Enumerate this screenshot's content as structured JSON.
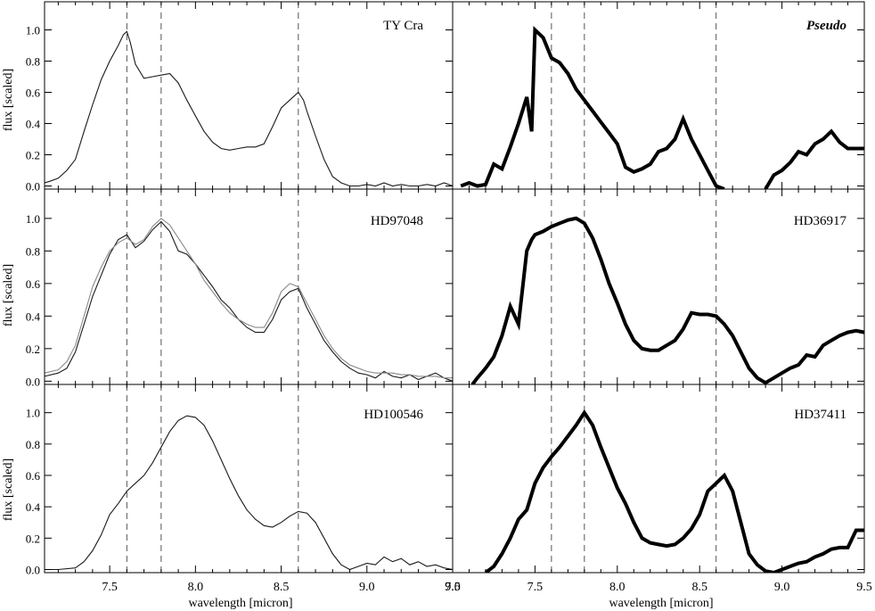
{
  "figure": {
    "ylabel": "flux [scaled]",
    "xlabel": "wavelength [micron]",
    "colors": {
      "axis": "#000000",
      "dash": "#555555",
      "spectrum": "#1a1a1a",
      "overlay": "#8a8a8a",
      "model": "#000000"
    }
  },
  "chart_data": [
    {
      "type": "line",
      "title": "TY Cra",
      "xlabel": "",
      "ylabel": "flux [scaled]",
      "xlim": [
        7.12,
        9.5
      ],
      "ylim": [
        -0.02,
        1.18
      ],
      "xticks": [],
      "yticks": [
        0.0,
        0.2,
        0.4,
        0.6,
        0.8,
        1.0
      ],
      "ytick_labels": [
        "0.0",
        "0.2",
        "0.4",
        "0.6",
        "0.8",
        "1.0"
      ],
      "vlines": [
        7.6,
        7.8,
        8.6
      ],
      "series": [
        {
          "style": "thin",
          "x": [
            7.12,
            7.15,
            7.2,
            7.25,
            7.3,
            7.35,
            7.4,
            7.45,
            7.5,
            7.55,
            7.58,
            7.6,
            7.62,
            7.65,
            7.7,
            7.75,
            7.8,
            7.85,
            7.9,
            7.95,
            8.0,
            8.05,
            8.1,
            8.15,
            8.2,
            8.25,
            8.3,
            8.35,
            8.4,
            8.45,
            8.5,
            8.55,
            8.6,
            8.63,
            8.65,
            8.7,
            8.75,
            8.8,
            8.85,
            8.9,
            8.95,
            9.0,
            9.05,
            9.1,
            9.15,
            9.2,
            9.25,
            9.3,
            9.35,
            9.4,
            9.45,
            9.5
          ],
          "y": [
            0.02,
            0.03,
            0.05,
            0.1,
            0.17,
            0.35,
            0.52,
            0.68,
            0.8,
            0.9,
            0.97,
            0.99,
            0.92,
            0.78,
            0.69,
            0.7,
            0.71,
            0.72,
            0.66,
            0.55,
            0.45,
            0.35,
            0.28,
            0.24,
            0.23,
            0.24,
            0.25,
            0.25,
            0.27,
            0.38,
            0.5,
            0.55,
            0.6,
            0.55,
            0.48,
            0.32,
            0.17,
            0.06,
            0.02,
            0.0,
            0.0,
            0.01,
            0.0,
            0.02,
            0.0,
            0.01,
            0.0,
            0.0,
            0.01,
            0.0,
            0.02,
            0.0
          ]
        }
      ]
    },
    {
      "type": "line",
      "title": "Pseudo",
      "xlabel": "",
      "ylabel": "",
      "xlim": [
        7.0,
        9.5
      ],
      "ylim": [
        -0.02,
        1.18
      ],
      "xticks": [],
      "yticks": [],
      "vlines": [
        7.6,
        7.8,
        8.6
      ],
      "series": [
        {
          "style": "thick",
          "x": [
            7.05,
            7.1,
            7.15,
            7.2,
            7.25,
            7.3,
            7.35,
            7.4,
            7.45,
            7.48,
            7.5,
            7.55,
            7.6,
            7.65,
            7.7,
            7.75,
            7.8,
            7.85,
            7.9,
            7.95,
            8.0,
            8.05,
            8.1,
            8.15,
            8.2,
            8.25,
            8.3,
            8.35,
            8.4,
            8.45,
            8.5,
            8.55,
            8.6,
            8.65
          ],
          "y": [
            0.0,
            0.02,
            0.0,
            0.01,
            0.14,
            0.11,
            0.25,
            0.4,
            0.57,
            0.35,
            1.0,
            0.95,
            0.82,
            0.79,
            0.72,
            0.62,
            0.55,
            0.48,
            0.41,
            0.34,
            0.27,
            0.12,
            0.09,
            0.11,
            0.14,
            0.22,
            0.24,
            0.3,
            0.43,
            0.3,
            0.2,
            0.1,
            0.0,
            -0.02
          ]
        },
        {
          "style": "thick",
          "x": [
            8.9,
            8.95,
            9.0,
            9.05,
            9.1,
            9.15,
            9.2,
            9.25,
            9.3,
            9.35,
            9.4,
            9.45,
            9.5
          ],
          "y": [
            -0.02,
            0.07,
            0.1,
            0.15,
            0.22,
            0.2,
            0.27,
            0.3,
            0.35,
            0.28,
            0.24,
            0.24,
            0.24
          ]
        }
      ]
    },
    {
      "type": "line",
      "title": "HD97048",
      "xlabel": "",
      "ylabel": "flux [scaled]",
      "xlim": [
        7.12,
        9.5
      ],
      "ylim": [
        -0.02,
        1.18
      ],
      "xticks": [],
      "yticks": [
        0.0,
        0.2,
        0.4,
        0.6,
        0.8,
        1.0
      ],
      "ytick_labels": [
        "0.0",
        "0.2",
        "0.4",
        "0.6",
        "0.8",
        "1.0"
      ],
      "vlines": [
        7.6,
        7.8,
        8.6
      ],
      "series": [
        {
          "style": "thin",
          "x": [
            7.12,
            7.2,
            7.25,
            7.3,
            7.35,
            7.4,
            7.45,
            7.5,
            7.55,
            7.6,
            7.65,
            7.7,
            7.75,
            7.8,
            7.85,
            7.9,
            7.95,
            8.0,
            8.05,
            8.1,
            8.15,
            8.2,
            8.25,
            8.3,
            8.35,
            8.4,
            8.45,
            8.5,
            8.55,
            8.6,
            8.65,
            8.7,
            8.75,
            8.8,
            8.85,
            8.9,
            8.95,
            9.0,
            9.05,
            9.1,
            9.15,
            9.2,
            9.25,
            9.3,
            9.35,
            9.4,
            9.45,
            9.5
          ],
          "y": [
            0.03,
            0.05,
            0.08,
            0.18,
            0.35,
            0.52,
            0.65,
            0.78,
            0.87,
            0.9,
            0.82,
            0.86,
            0.93,
            0.98,
            0.92,
            0.8,
            0.78,
            0.72,
            0.65,
            0.58,
            0.5,
            0.45,
            0.38,
            0.33,
            0.3,
            0.3,
            0.38,
            0.5,
            0.55,
            0.57,
            0.45,
            0.35,
            0.25,
            0.18,
            0.12,
            0.08,
            0.05,
            0.04,
            0.02,
            0.06,
            0.03,
            0.02,
            0.04,
            0.01,
            0.03,
            0.05,
            0.02,
            0.0
          ]
        },
        {
          "style": "overlay",
          "x": [
            7.12,
            7.2,
            7.25,
            7.3,
            7.35,
            7.4,
            7.45,
            7.5,
            7.55,
            7.6,
            7.65,
            7.7,
            7.75,
            7.8,
            7.85,
            7.9,
            7.95,
            8.0,
            8.05,
            8.1,
            8.15,
            8.2,
            8.25,
            8.3,
            8.35,
            8.4,
            8.45,
            8.5,
            8.55,
            8.6,
            8.65,
            8.7,
            8.75,
            8.8,
            8.85,
            8.9,
            8.95,
            9.0,
            9.05,
            9.1,
            9.15,
            9.2,
            9.25,
            9.3,
            9.35,
            9.4,
            9.45,
            9.5
          ],
          "y": [
            0.05,
            0.07,
            0.12,
            0.22,
            0.4,
            0.58,
            0.7,
            0.8,
            0.85,
            0.88,
            0.84,
            0.87,
            0.95,
            1.0,
            0.96,
            0.88,
            0.8,
            0.72,
            0.62,
            0.55,
            0.48,
            0.42,
            0.38,
            0.35,
            0.33,
            0.33,
            0.42,
            0.55,
            0.6,
            0.58,
            0.48,
            0.38,
            0.28,
            0.2,
            0.14,
            0.1,
            0.08,
            0.06,
            0.05,
            0.05,
            0.05,
            0.04,
            0.04,
            0.03,
            0.03,
            0.03,
            0.02,
            0.02
          ]
        }
      ]
    },
    {
      "type": "line",
      "title": "HD36917",
      "xlabel": "",
      "ylabel": "",
      "xlim": [
        7.0,
        9.5
      ],
      "ylim": [
        -0.02,
        1.18
      ],
      "xticks": [],
      "yticks": [],
      "vlines": [
        7.6,
        7.8,
        8.6
      ],
      "series": [
        {
          "style": "thick",
          "x": [
            7.12,
            7.15,
            7.2,
            7.25,
            7.3,
            7.35,
            7.4,
            7.45,
            7.48,
            7.5,
            7.55,
            7.6,
            7.65,
            7.7,
            7.75,
            7.8,
            7.85,
            7.9,
            7.95,
            8.0,
            8.05,
            8.1,
            8.15,
            8.2,
            8.25,
            8.3,
            8.35,
            8.4,
            8.45,
            8.5,
            8.55,
            8.6,
            8.65,
            8.7,
            8.75,
            8.8,
            8.85,
            8.9,
            8.95,
            9.0,
            9.05,
            9.1,
            9.15,
            9.2,
            9.25,
            9.3,
            9.35,
            9.4,
            9.45,
            9.5
          ],
          "y": [
            -0.02,
            0.02,
            0.08,
            0.15,
            0.28,
            0.46,
            0.35,
            0.8,
            0.87,
            0.9,
            0.92,
            0.95,
            0.97,
            0.99,
            1.0,
            0.97,
            0.88,
            0.75,
            0.6,
            0.48,
            0.35,
            0.25,
            0.2,
            0.19,
            0.19,
            0.22,
            0.25,
            0.32,
            0.42,
            0.41,
            0.41,
            0.4,
            0.35,
            0.28,
            0.18,
            0.08,
            0.02,
            -0.01,
            0.02,
            0.05,
            0.08,
            0.1,
            0.16,
            0.15,
            0.22,
            0.25,
            0.28,
            0.3,
            0.31,
            0.3
          ]
        }
      ]
    },
    {
      "type": "line",
      "title": "HD100546",
      "xlabel": "wavelength [micron]",
      "ylabel": "flux [scaled]",
      "xlim": [
        7.12,
        9.5
      ],
      "ylim": [
        -0.02,
        1.18
      ],
      "xticks": [
        7.5,
        8.0,
        8.5,
        9.0,
        9.5
      ],
      "xtick_labels": [
        "7.5",
        "8.0",
        "8.5",
        "9.0",
        "9.5"
      ],
      "yticks": [
        0.0,
        0.2,
        0.4,
        0.6,
        0.8,
        1.0
      ],
      "ytick_labels": [
        "0.0",
        "0.2",
        "0.4",
        "0.6",
        "0.8",
        "1.0"
      ],
      "vlines": [
        7.6,
        7.8,
        8.6
      ],
      "series": [
        {
          "style": "thin",
          "x": [
            7.12,
            7.2,
            7.3,
            7.35,
            7.4,
            7.45,
            7.5,
            7.55,
            7.6,
            7.65,
            7.7,
            7.75,
            7.8,
            7.85,
            7.9,
            7.95,
            8.0,
            8.05,
            8.1,
            8.15,
            8.2,
            8.25,
            8.3,
            8.35,
            8.4,
            8.45,
            8.5,
            8.55,
            8.6,
            8.65,
            8.7,
            8.75,
            8.8,
            8.85,
            8.9,
            8.95,
            9.0,
            9.05,
            9.1,
            9.15,
            9.2,
            9.25,
            9.3,
            9.35,
            9.4,
            9.45,
            9.5
          ],
          "y": [
            0.0,
            0.0,
            0.01,
            0.05,
            0.12,
            0.22,
            0.35,
            0.42,
            0.5,
            0.55,
            0.6,
            0.68,
            0.78,
            0.88,
            0.95,
            0.98,
            0.97,
            0.92,
            0.82,
            0.7,
            0.58,
            0.47,
            0.38,
            0.32,
            0.28,
            0.27,
            0.3,
            0.34,
            0.37,
            0.36,
            0.3,
            0.2,
            0.1,
            0.03,
            0.0,
            0.02,
            0.04,
            0.03,
            0.08,
            0.05,
            0.07,
            0.03,
            0.05,
            0.02,
            0.03,
            0.01,
            0.0
          ]
        }
      ]
    },
    {
      "type": "line",
      "title": "HD37411",
      "xlabel": "wavelength [micron]",
      "ylabel": "",
      "xlim": [
        7.0,
        9.5
      ],
      "ylim": [
        -0.02,
        1.18
      ],
      "xticks": [
        7.0,
        7.5,
        8.0,
        8.5,
        9.0,
        9.5
      ],
      "xtick_labels": [
        "7.0",
        "7.5",
        "8.0",
        "8.5",
        "9.0",
        "9.5"
      ],
      "yticks": [],
      "vlines": [
        7.6,
        7.8,
        8.6
      ],
      "series": [
        {
          "style": "thick",
          "x": [
            7.2,
            7.25,
            7.3,
            7.35,
            7.4,
            7.45,
            7.5,
            7.55,
            7.6,
            7.65,
            7.7,
            7.75,
            7.8,
            7.85,
            7.9,
            7.95,
            8.0,
            8.05,
            8.1,
            8.15,
            8.2,
            8.25,
            8.3,
            8.35,
            8.4,
            8.45,
            8.5,
            8.55,
            8.6,
            8.65,
            8.7,
            8.75,
            8.8,
            8.85,
            8.9,
            8.95,
            9.0,
            9.05,
            9.1,
            9.15,
            9.2,
            9.25,
            9.3,
            9.35,
            9.4,
            9.45,
            9.5
          ],
          "y": [
            -0.02,
            0.02,
            0.1,
            0.2,
            0.32,
            0.38,
            0.55,
            0.65,
            0.72,
            0.78,
            0.85,
            0.92,
            1.0,
            0.92,
            0.78,
            0.65,
            0.52,
            0.42,
            0.3,
            0.2,
            0.17,
            0.16,
            0.15,
            0.16,
            0.2,
            0.26,
            0.35,
            0.5,
            0.55,
            0.6,
            0.5,
            0.3,
            0.1,
            0.03,
            -0.01,
            -0.02,
            0.0,
            0.02,
            0.04,
            0.05,
            0.08,
            0.1,
            0.13,
            0.14,
            0.14,
            0.25,
            0.25
          ]
        }
      ]
    }
  ]
}
